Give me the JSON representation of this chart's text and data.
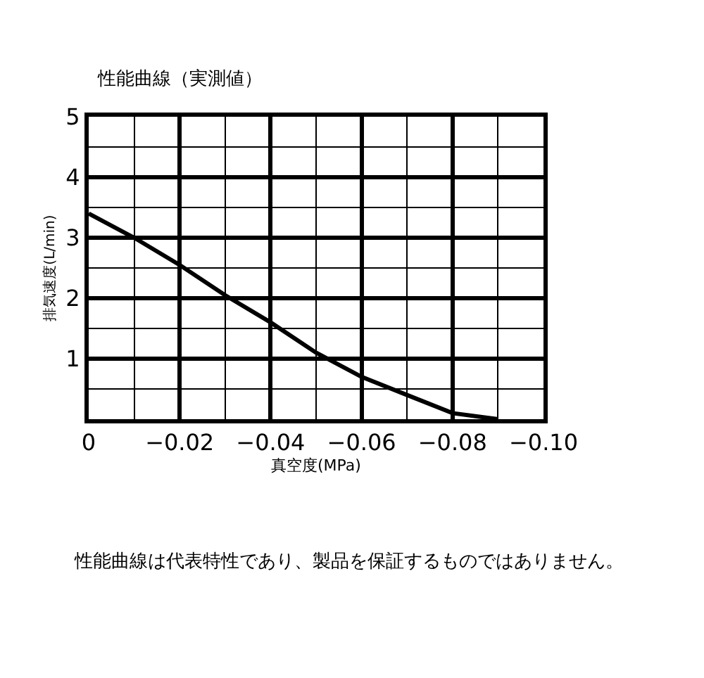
{
  "chart_data": {
    "type": "line",
    "title": "性能曲線（実測値）",
    "xlabel": "真空度(MPa)",
    "ylabel": "排気速度(L/min)",
    "x": [
      0,
      -0.01,
      -0.02,
      -0.03,
      -0.04,
      -0.05,
      -0.06,
      -0.07,
      -0.08,
      -0.09
    ],
    "series": [
      {
        "color": "#000000",
        "values": [
          3.4,
          3.0,
          2.55,
          2.05,
          1.6,
          1.1,
          0.7,
          0.4,
          0.1,
          0
        ]
      }
    ],
    "xlim": [
      0,
      -0.1
    ],
    "xticks": [
      0,
      {
        "value": -0.02,
        "label": "−0.02"
      },
      {
        "value": -0.04,
        "label": "−0.04"
      },
      {
        "value": -0.06,
        "label": "−0.06"
      },
      {
        "value": -0.08,
        "label": "−0.08"
      },
      {
        "value": -0.1,
        "label": "−0.10"
      }
    ],
    "ylim": [
      0,
      5
    ],
    "yticks": [
      1,
      2,
      3,
      4,
      5
    ],
    "grid": true,
    "marker": "none",
    "line_style": "solid",
    "annotations": [
      "性能曲線は代表特性であり、製品を保証するものではありません。"
    ]
  }
}
